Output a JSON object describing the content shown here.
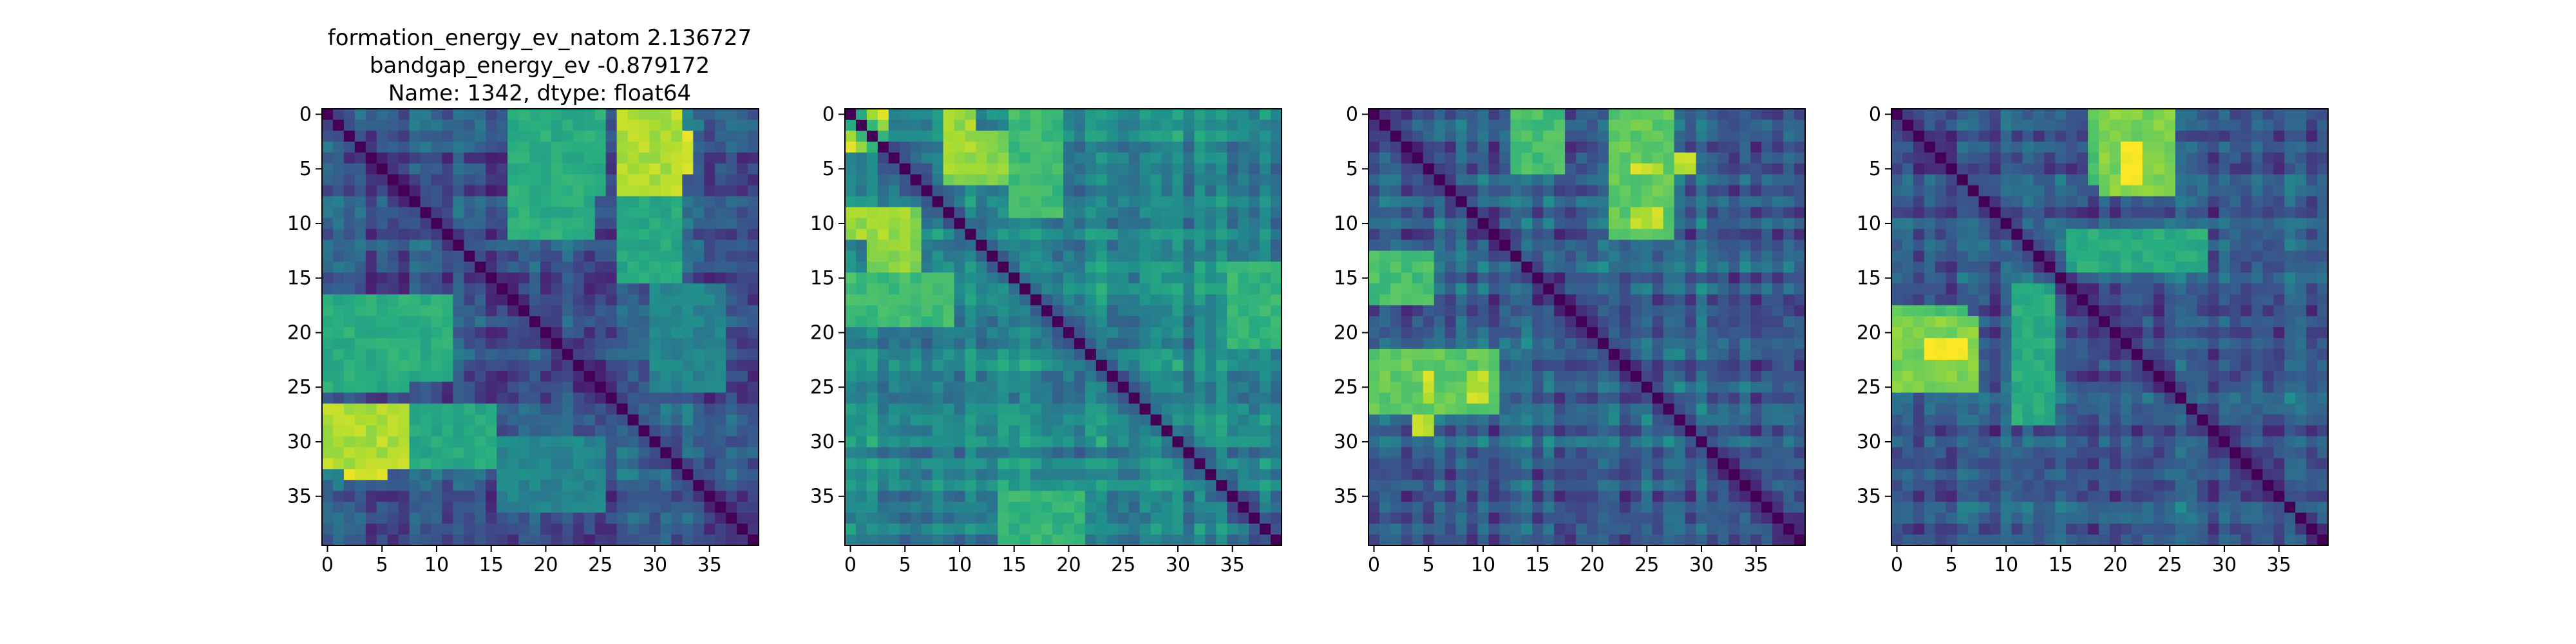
{
  "figure": {
    "title_lines": [
      "formation_energy_ev_natom    2.136727",
      "bandgap_energy_ev           -0.879172",
      "Name: 1342, dtype: float64"
    ]
  },
  "chart_data": [
    {
      "type": "heatmap",
      "title": "",
      "matrix_size": 40,
      "colormap": "viridis",
      "x_ticks": [
        0,
        5,
        10,
        15,
        20,
        25,
        30,
        35
      ],
      "y_ticks": [
        0,
        5,
        10,
        15,
        20,
        25,
        30,
        35
      ],
      "xlim": [
        -0.5,
        39.5
      ],
      "ylim": [
        39.5,
        -0.5
      ],
      "diagonal_value": 0,
      "off_diagonal_range": [
        0.1,
        1.0
      ],
      "symmetric": true,
      "dominant_value": 0.28,
      "high_value_blocks": [
        {
          "rows": [
            2,
            6
          ],
          "cols": [
            27,
            34
          ],
          "value": 0.95
        },
        {
          "rows": [
            0,
            8
          ],
          "cols": [
            17,
            26
          ],
          "value": 0.62
        },
        {
          "rows": [
            17,
            25
          ],
          "cols": [
            0,
            12
          ],
          "value": 0.62
        },
        {
          "rows": [
            27,
            33
          ],
          "cols": [
            0,
            8
          ],
          "value": 0.88
        },
        {
          "rows": [
            27,
            33
          ],
          "cols": [
            8,
            16
          ],
          "value": 0.6
        },
        {
          "rows": [
            30,
            37
          ],
          "cols": [
            16,
            26
          ],
          "value": 0.45
        }
      ]
    },
    {
      "type": "heatmap",
      "title": "",
      "matrix_size": 40,
      "colormap": "viridis",
      "x_ticks": [
        0,
        5,
        10,
        15,
        20,
        25,
        30,
        35
      ],
      "y_ticks": [
        0,
        5,
        10,
        15,
        20,
        25,
        30,
        35
      ],
      "xlim": [
        -0.5,
        39.5
      ],
      "ylim": [
        39.5,
        -0.5
      ],
      "diagonal_value": 0,
      "off_diagonal_range": [
        0.1,
        1.0
      ],
      "symmetric": true,
      "dominant_value": 0.45,
      "high_value_blocks": [
        {
          "rows": [
            0,
            3
          ],
          "cols": [
            0,
            4
          ],
          "value": 0.98
        },
        {
          "rows": [
            2,
            7
          ],
          "cols": [
            9,
            20
          ],
          "value": 0.82
        },
        {
          "rows": [
            9,
            12
          ],
          "cols": [
            0,
            6
          ],
          "value": 0.85
        },
        {
          "rows": [
            15,
            20
          ],
          "cols": [
            0,
            10
          ],
          "value": 0.68
        },
        {
          "rows": [
            36,
            40
          ],
          "cols": [
            15,
            20
          ],
          "value": 0.72
        },
        {
          "rows": [
            14,
            22
          ],
          "cols": [
            35,
            40
          ],
          "value": 0.65
        }
      ]
    },
    {
      "type": "heatmap",
      "title": "",
      "matrix_size": 40,
      "colormap": "viridis",
      "x_ticks": [
        0,
        5,
        10,
        15,
        20,
        25,
        30,
        35
      ],
      "y_ticks": [
        0,
        5,
        10,
        15,
        20,
        25,
        30,
        35
      ],
      "xlim": [
        -0.5,
        39.5
      ],
      "ylim": [
        39.5,
        -0.5
      ],
      "diagonal_value": 0,
      "off_diagonal_range": [
        0.1,
        1.0
      ],
      "symmetric": true,
      "dominant_value": 0.32,
      "high_value_blocks": [
        {
          "rows": [
            0,
            6
          ],
          "cols": [
            13,
            18
          ],
          "value": 0.7
        },
        {
          "rows": [
            4,
            6
          ],
          "cols": [
            24,
            30
          ],
          "value": 0.9
        },
        {
          "rows": [
            8,
            12
          ],
          "cols": [
            24,
            28
          ],
          "value": 0.82
        },
        {
          "rows": [
            22,
            28
          ],
          "cols": [
            0,
            12
          ],
          "value": 0.75
        },
        {
          "rows": [
            24,
            27
          ],
          "cols": [
            5,
            6
          ],
          "value": 0.92
        },
        {
          "rows": [
            24,
            27
          ],
          "cols": [
            9,
            11
          ],
          "value": 0.9
        }
      ]
    },
    {
      "type": "heatmap",
      "title": "",
      "matrix_size": 40,
      "colormap": "viridis",
      "x_ticks": [
        0,
        5,
        10,
        15,
        20,
        25,
        30,
        35
      ],
      "y_ticks": [
        0,
        5,
        10,
        15,
        20,
        25,
        30,
        35
      ],
      "xlim": [
        -0.5,
        39.5
      ],
      "ylim": [
        39.5,
        -0.5
      ],
      "diagonal_value": 0,
      "off_diagonal_range": [
        0.1,
        1.0
      ],
      "symmetric": true,
      "dominant_value": 0.3,
      "high_value_blocks": [
        {
          "rows": [
            0,
            7
          ],
          "cols": [
            18,
            25
          ],
          "value": 0.72
        },
        {
          "rows": [
            5,
            7
          ],
          "cols": [
            21,
            24
          ],
          "value": 0.97
        },
        {
          "rows": [
            11,
            15
          ],
          "cols": [
            16,
            29
          ],
          "value": 0.62
        },
        {
          "rows": [
            19,
            26
          ],
          "cols": [
            0,
            8
          ],
          "value": 0.8
        },
        {
          "rows": [
            21,
            23
          ],
          "cols": [
            3,
            7
          ],
          "value": 0.98
        }
      ]
    }
  ]
}
